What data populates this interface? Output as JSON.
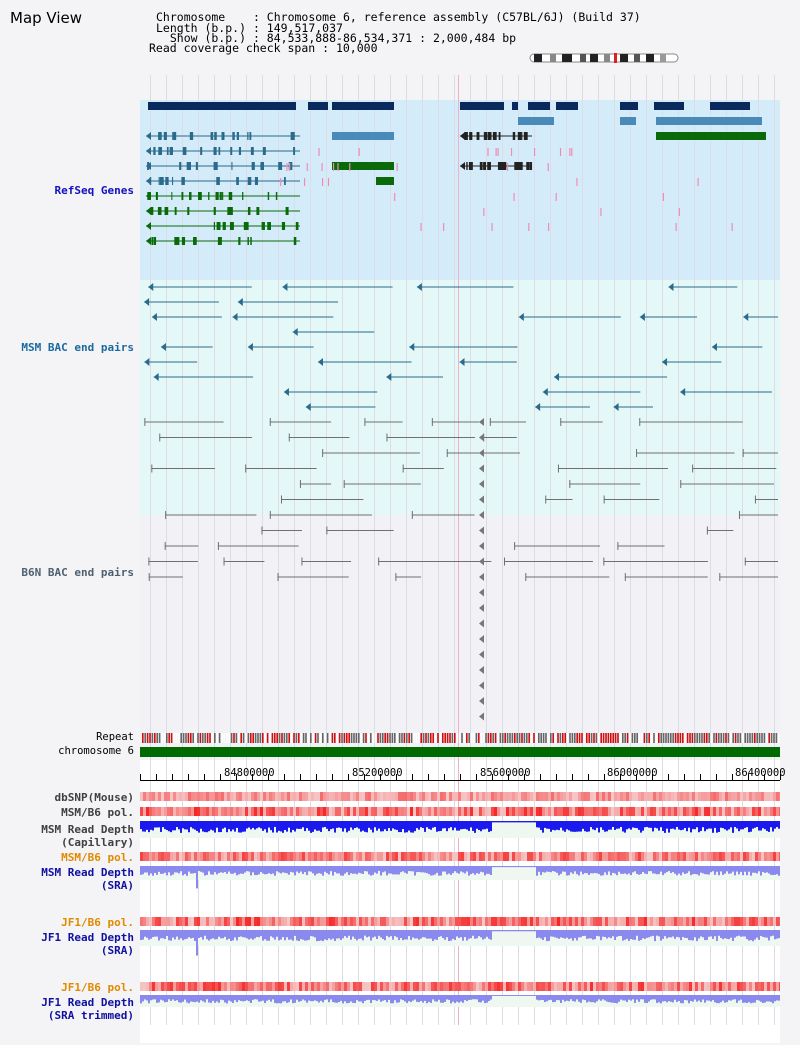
{
  "header": {
    "title": "Map View",
    "chromosome_label": "Chromosome    ",
    "chromosome_value": "Chromosome 6, reference assembly (C57BL/6J) (Build 37)",
    "length_label": "Length (b.p.) ",
    "length_value": "149,517,037",
    "show_label": "  Show (b.p.) ",
    "show_value": "84,533,888-86,534,371 : 2,000,484 bp",
    "coverage_label": "Read coverage check span",
    "coverage_value": "10,000"
  },
  "tracks": {
    "refseq": "RefSeq Genes",
    "msm_bac": "MSM BAC end pairs",
    "b6n_bac": "B6N BAC end pairs",
    "repeat": "Repeat",
    "chromosome": "chromosome 6"
  },
  "axis": {
    "ticks": [
      "84800000",
      "85200000",
      "85600000",
      "86000000",
      "86400000"
    ]
  },
  "lower_tracks": [
    {
      "line1": "dbSNP(Mouse)",
      "line2": "",
      "color": "#404040"
    },
    {
      "line1": "MSM/B6 pol.",
      "line2": "",
      "color": "#404040"
    },
    {
      "line1": "MSM Read Depth",
      "line2": "(Capillary)",
      "color": "#404040"
    },
    {
      "line1": "MSM/B6 pol.",
      "line2": "",
      "color": "#e08a00"
    },
    {
      "line1": "MSM Read Depth",
      "line2": "(SRA)",
      "color": "#1010a0"
    },
    {
      "line1": "JF1/B6 pol.",
      "line2": "",
      "color": "#e08a00"
    },
    {
      "line1": "JF1 Read Depth",
      "line2": "(SRA)",
      "color": "#1010a0"
    },
    {
      "line1": "JF1/B6 pol.",
      "line2": "",
      "color": "#e08a00"
    },
    {
      "line1": "JF1 Read Depth",
      "line2": "(SRA trimmed)",
      "color": "#1010a0"
    }
  ],
  "colors": {
    "navy": "#0a2a5e",
    "steel_blue": "#4a8ab8",
    "green": "#0a6a0a",
    "pink": "#f08cb4",
    "teal": "#2a6a8a",
    "gray": "#707070",
    "chromosome": "#006a00",
    "depth_dark": "#1a1aee",
    "depth_light": "#8a8aee"
  }
}
